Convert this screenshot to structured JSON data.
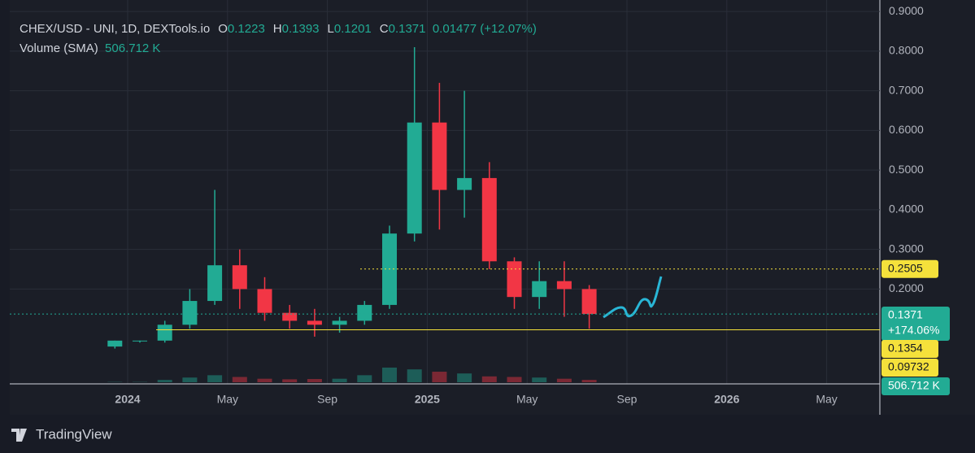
{
  "chart_data": {
    "type": "candlestick",
    "title": "CHEX/USD - UNI, 1D, DEXTools.io",
    "ohlc_letters": [
      "O",
      "H",
      "L",
      "C"
    ],
    "ohlc_values": [
      0.1223,
      0.1393,
      0.1201,
      0.1371
    ],
    "change": "0.01477 (+12.07%)",
    "volume_title": "Volume (SMA)",
    "volume_value": "506.712 K",
    "x": [
      "2023-12",
      "2024-01",
      "2024-02",
      "2024-03",
      "2024-04",
      "2024-05",
      "2024-06",
      "2024-07",
      "2024-08",
      "2024-09",
      "2024-10",
      "2024-11",
      "2024-12",
      "2025-01",
      "2025-02",
      "2025-03",
      "2025-04",
      "2025-05",
      "2025-06",
      "2025-07"
    ],
    "open": [
      0.055,
      0.07,
      0.07,
      0.11,
      0.17,
      0.26,
      0.2,
      0.14,
      0.12,
      0.11,
      0.12,
      0.16,
      0.34,
      0.62,
      0.45,
      0.48,
      0.27,
      0.18,
      0.22,
      0.2
    ],
    "high": [
      0.07,
      0.07,
      0.12,
      0.2,
      0.45,
      0.3,
      0.23,
      0.16,
      0.15,
      0.13,
      0.17,
      0.36,
      0.81,
      0.72,
      0.7,
      0.52,
      0.28,
      0.27,
      0.27,
      0.21
    ],
    "low": [
      0.05,
      0.065,
      0.065,
      0.1,
      0.16,
      0.15,
      0.12,
      0.1,
      0.08,
      0.09,
      0.11,
      0.15,
      0.32,
      0.35,
      0.38,
      0.25,
      0.15,
      0.15,
      0.13,
      0.1
    ],
    "close": [
      0.07,
      0.07,
      0.11,
      0.17,
      0.26,
      0.2,
      0.14,
      0.12,
      0.11,
      0.12,
      0.16,
      0.34,
      0.62,
      0.45,
      0.48,
      0.27,
      0.18,
      0.22,
      0.2,
      0.1371
    ],
    "volume": [
      5,
      5,
      40,
      80,
      120,
      90,
      60,
      50,
      55,
      60,
      120,
      250,
      220,
      180,
      150,
      100,
      90,
      80,
      60,
      40
    ],
    "up_color": "#22ab94",
    "down_color": "#f23645",
    "ylim": [
      -0.035,
      0.929
    ],
    "yticks": [
      {
        "value": 0.2,
        "label": "0.2000"
      },
      {
        "value": 0.3,
        "label": "0.3000"
      },
      {
        "value": 0.4,
        "label": "0.4000"
      },
      {
        "value": 0.5,
        "label": "0.5000"
      },
      {
        "value": 0.6,
        "label": "0.6000"
      },
      {
        "value": 0.7,
        "label": "0.7000"
      },
      {
        "value": 0.8,
        "label": "0.8000"
      },
      {
        "value": 0.9,
        "label": "0.9000"
      }
    ],
    "xticks": [
      {
        "value": "2024-01",
        "label": "2024"
      },
      {
        "value": "2024-05",
        "label": "May"
      },
      {
        "value": "2024-09",
        "label": "Sep"
      },
      {
        "value": "2025-01",
        "label": "2025"
      },
      {
        "value": "2025-05",
        "label": "May"
      },
      {
        "value": "2025-09",
        "label": "Sep"
      },
      {
        "value": "2026-01",
        "label": "2026"
      },
      {
        "value": "2026-05",
        "label": "May"
      }
    ],
    "grid": true,
    "price_lines": [
      {
        "value": 0.2505,
        "color": "#f5e13b",
        "style": "dotted"
      },
      {
        "value": 0.1371,
        "color": "#22ab94",
        "style": "dotted"
      },
      {
        "value": 0.09732,
        "color": "#f5e13b",
        "style": "solid"
      }
    ],
    "change_percent": "+174.06%",
    "extra_label": 0.1354
  },
  "footer": "TradingView"
}
